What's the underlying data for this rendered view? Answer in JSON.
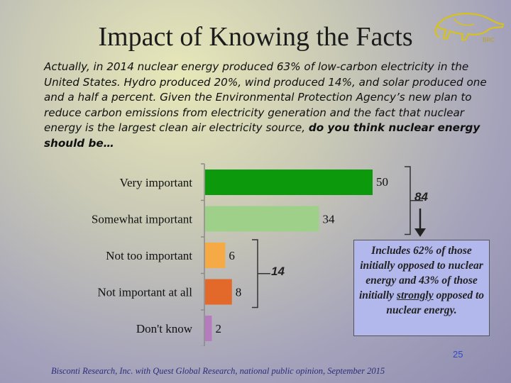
{
  "slide": {
    "title": "Impact of Knowing the Facts",
    "question_pre": "Actually, in 2014 nuclear energy produced 63% of low-carbon electricity in the United States. Hydro produced 20%, wind produced 14%, and solar produced one and a half a percent. Given the Environmental Protection Agency’s new plan to reduce carbon emissions from electricity generation and the fact that nuclear energy is the largest clean air electricity source, ",
    "question_bold": "do you think nuclear energy should be…",
    "callout_pre": "Includes 62% of those initially opposed to nuclear energy and 43% of those initially ",
    "callout_underlined": "strongly",
    "callout_post": " opposed to nuclear energy.",
    "page_number": "25",
    "source": "Bisconti Research, Inc. with Quest Global Research, national public opinion, September 2015"
  },
  "chart_data": {
    "type": "bar",
    "orientation": "horizontal",
    "categories": [
      "Very important",
      "Somewhat important",
      "Not too important",
      "Not important at all",
      "Don't know"
    ],
    "values": [
      50,
      34,
      6,
      8,
      2
    ],
    "colors": [
      "#0c9a0c",
      "#9fd08a",
      "#f5aa45",
      "#e2692a",
      "#b67bbf"
    ],
    "groups": [
      {
        "label": "84",
        "categories": [
          "Very important",
          "Somewhat important"
        ]
      },
      {
        "label": "14",
        "categories": [
          "Not too important",
          "Not important at all"
        ]
      }
    ],
    "xlim": [
      0,
      60
    ],
    "title": "",
    "xlabel": "",
    "ylabel": ""
  }
}
